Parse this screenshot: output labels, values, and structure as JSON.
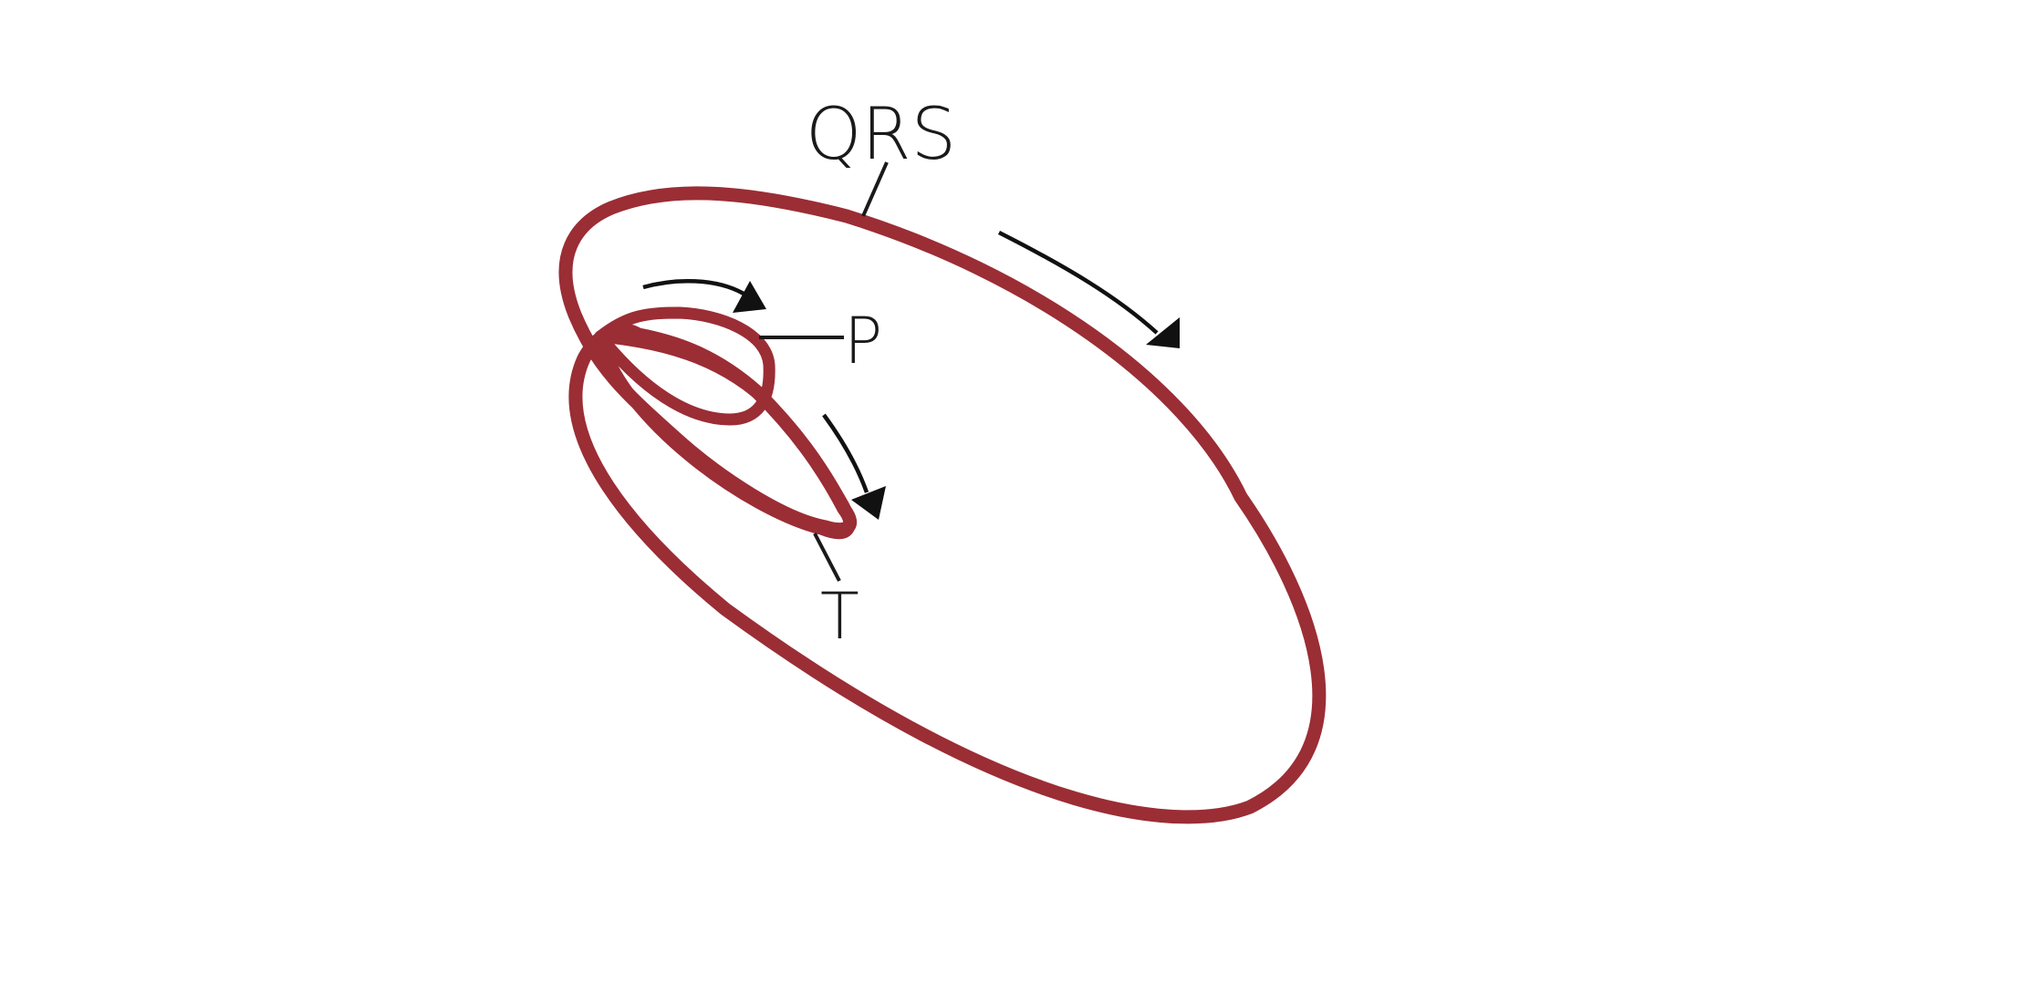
{
  "labels": {
    "qrs": "QRS",
    "p": "P",
    "t": "T"
  },
  "colors": {
    "loop": "#9b2d35",
    "ink": "#1a1a1a",
    "background": "#ffffff"
  }
}
